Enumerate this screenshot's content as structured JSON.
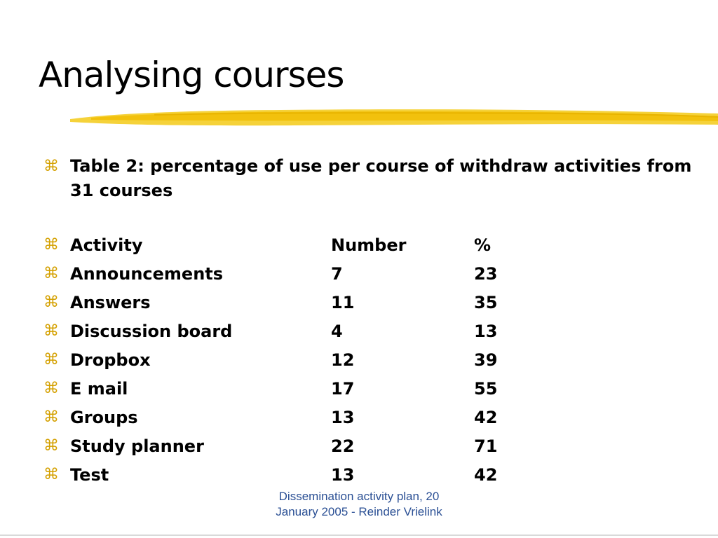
{
  "slide": {
    "title": "Analysing courses",
    "bullet_glyph": "⌘",
    "table_caption": "Table 2: percentage of use per course of withdraw activities from 31 courses",
    "table": {
      "headers": [
        "Activity",
        "Number",
        "%"
      ],
      "rows": [
        [
          "Announcements",
          "7",
          "23"
        ],
        [
          "Answers",
          "11",
          "35"
        ],
        [
          "Discussion board",
          "4",
          "13"
        ],
        [
          "Dropbox",
          "12",
          "39"
        ],
        [
          "E mail",
          "17",
          "55"
        ],
        [
          "Groups",
          "13",
          "42"
        ],
        [
          "Study planner",
          "22",
          "71"
        ],
        [
          "Test",
          "13",
          "42"
        ]
      ]
    },
    "footer_line1": "Dissemination activity plan, 20",
    "footer_line2": "January 2005 - Reinder Vrielink"
  },
  "colors": {
    "accent_brush": "#f2c10d",
    "bullet": "#d4a000",
    "footer_text": "#2a4f94"
  }
}
